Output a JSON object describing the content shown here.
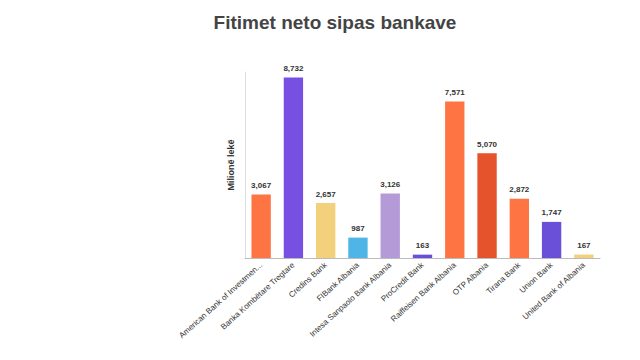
{
  "chart_data": {
    "type": "bar",
    "title": "Fitimet neto sipas bankave",
    "y_label": "Milionë lekë",
    "categories": [
      "American Bank of Investmen...",
      "Banka Kombëtare Tregtare",
      "Credins Bank",
      "FIBank Albania",
      "Intesa Sanpaolo Bank Albania",
      "ProCredit Bank",
      "Raiffeisen Bank Albania",
      "OTP Albania",
      "Tirana Bank",
      "Union Bank",
      "United Bank of Albania"
    ],
    "values": [
      3067,
      8732,
      2657,
      987,
      3126,
      163,
      7571,
      5070,
      2872,
      1747,
      167
    ],
    "value_labels": [
      "3,067",
      "8,732",
      "2,657",
      "987",
      "3,126",
      "163",
      "7,571",
      "5,070",
      "2,872",
      "1,747",
      "167"
    ],
    "colors": [
      "#ff7443",
      "#7750e3",
      "#f3d07c",
      "#4fb5e6",
      "#b49bd8",
      "#6a4fd8",
      "#ff7443",
      "#e4532c",
      "#ff7443",
      "#6a4fd8",
      "#f3d07c"
    ],
    "ylim": [
      0,
      9000
    ],
    "grid": false,
    "data_labels": true,
    "tick_labels": "x"
  }
}
